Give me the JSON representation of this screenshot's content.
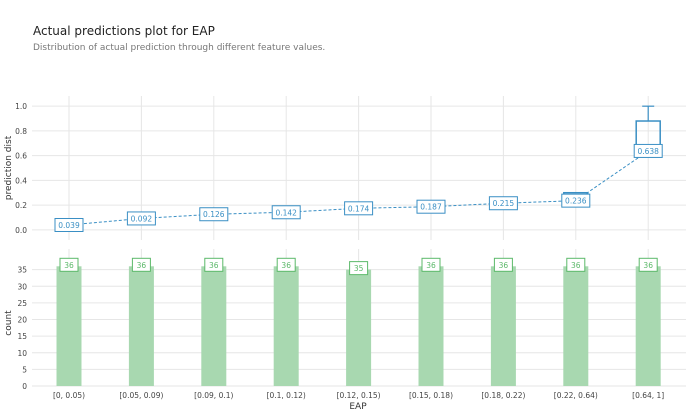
{
  "header": {
    "title": "Actual predictions plot for EAP",
    "subtitle": "Distribution of actual prediction through different feature values."
  },
  "chart_data": {
    "type": "line",
    "xlabel": "EAP",
    "categories": [
      "[0, 0.05)",
      "[0.05, 0.09)",
      "[0.09, 0.1)",
      "[0.1, 0.12)",
      "[0.12, 0.15)",
      "[0.15, 0.18)",
      "[0.18, 0.22)",
      "[0.22, 0.64)",
      "[0.64, 1]"
    ],
    "top": {
      "ylabel": "prediction dist",
      "ylim": [
        -0.05,
        1.05
      ],
      "yticks": [
        0.0,
        0.2,
        0.4,
        0.6,
        0.8,
        1.0
      ],
      "ytick_labels": [
        "0.0",
        "0.2",
        "0.4",
        "0.6",
        "0.8",
        "1.0"
      ],
      "values": [
        0.039,
        0.092,
        0.126,
        0.142,
        0.174,
        0.187,
        0.215,
        0.236,
        0.638
      ],
      "value_labels": [
        "0.039",
        "0.092",
        "0.126",
        "0.142",
        "0.174",
        "0.187",
        "0.215",
        "0.236",
        "0.638"
      ],
      "boxes": [
        null,
        null,
        null,
        null,
        null,
        null,
        null,
        {
          "q1": 0.28,
          "q3": 0.3,
          "wlo": 0.28,
          "whi": 0.3
        },
        {
          "q1": 0.6,
          "q3": 0.88,
          "wlo": 0.6,
          "whi": 1.0
        }
      ]
    },
    "bottom": {
      "ylabel": "count",
      "ylim": [
        0,
        40
      ],
      "yticks": [
        0,
        5,
        10,
        15,
        20,
        25,
        30,
        35
      ],
      "ytick_labels": [
        "0",
        "5",
        "10",
        "15",
        "20",
        "25",
        "30",
        "35"
      ],
      "values": [
        36,
        36,
        36,
        36,
        35,
        36,
        36,
        36,
        36
      ],
      "value_labels": [
        "36",
        "36",
        "36",
        "36",
        "35",
        "36",
        "36",
        "36",
        "36"
      ]
    },
    "colors": {
      "line": "#3a8fc4",
      "bar": "#a8d8b0",
      "bar_label": "#5cb96a",
      "grid": "#e6e6e6",
      "tick_text": "#444444"
    }
  }
}
